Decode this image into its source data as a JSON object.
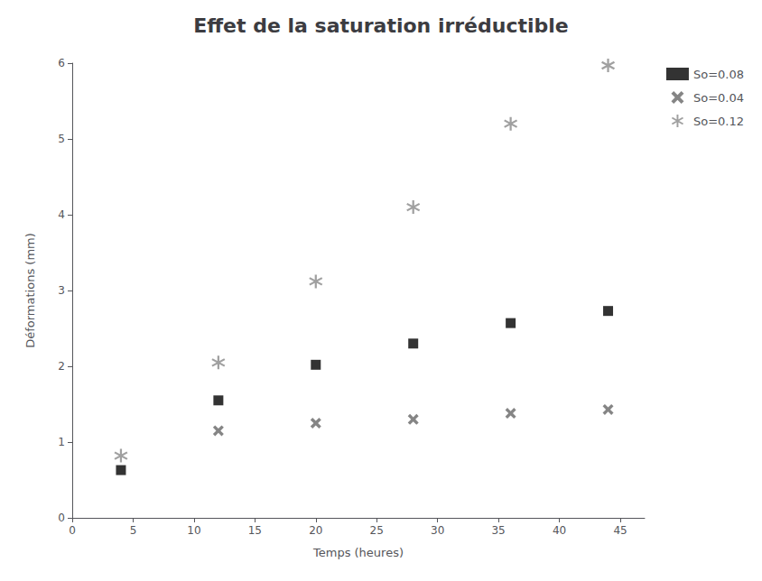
{
  "chart_data": {
    "type": "scatter",
    "title": "Effet de la saturation irréductible",
    "x_label": "Temps (heures)",
    "y_label": "Déformations (mm)",
    "xlim": [
      0,
      47
    ],
    "ylim": [
      0,
      6
    ],
    "xticks": [
      0,
      5,
      10,
      15,
      20,
      25,
      30,
      35,
      40,
      45
    ],
    "yticks": [
      0,
      1,
      2,
      3,
      4,
      5,
      6
    ],
    "grid": false,
    "legend": "upper right",
    "series": [
      {
        "name": "So=0.08",
        "color": "#000000",
        "marker": "square",
        "x": [
          4,
          12,
          20,
          28,
          36,
          44
        ],
        "values": [
          0.63,
          1.55,
          2.02,
          2.3,
          2.57,
          2.73
        ]
      },
      {
        "name": "So=0.04",
        "color": "#666666",
        "marker": "x",
        "x": [
          12,
          20,
          28,
          36,
          44
        ],
        "values": [
          1.15,
          1.25,
          1.3,
          1.38,
          1.43
        ]
      },
      {
        "name": "So=0.12",
        "color": "#888888",
        "marker": "asterisk",
        "x": [
          4,
          12,
          20,
          28,
          36,
          44
        ],
        "values": [
          0.82,
          2.05,
          3.12,
          4.1,
          5.2,
          5.97
        ]
      }
    ]
  }
}
